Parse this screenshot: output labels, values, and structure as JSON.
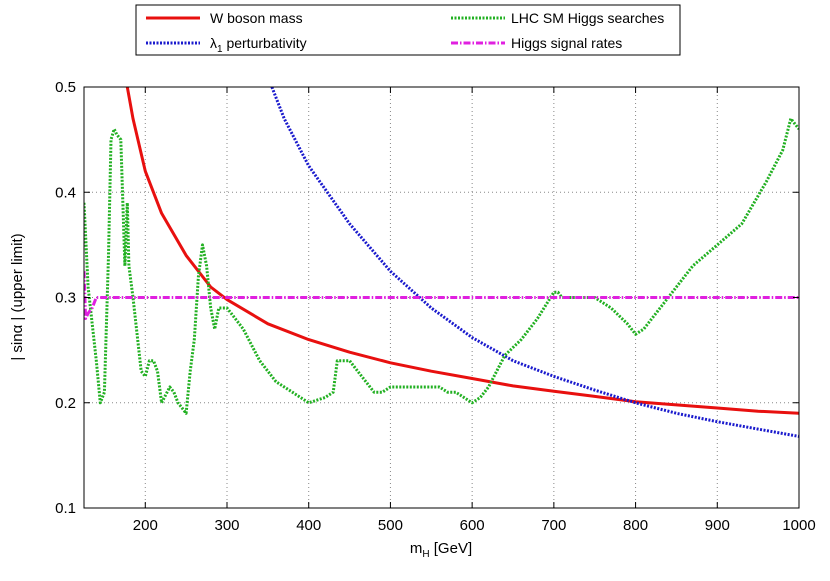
{
  "chart_data": {
    "type": "line",
    "xlabel": "m_H [GeV]",
    "xlabel_main": "m",
    "xlabel_sub": "H",
    "xlabel_rest": " [GeV]",
    "ylabel": "| sinα |  (upper limit)",
    "xlim": [
      125,
      1000
    ],
    "ylim": [
      0.1,
      0.5
    ],
    "x_ticks": [
      200,
      300,
      400,
      500,
      600,
      700,
      800,
      900,
      1000
    ],
    "x_tick_labels": [
      "200",
      "300",
      "400",
      "500",
      "600",
      "700",
      "800",
      "900",
      "1000"
    ],
    "y_ticks": [
      0.1,
      0.2,
      0.3,
      0.4,
      0.5
    ],
    "y_tick_labels": [
      "0.1",
      "0.2",
      "0.3",
      "0.4",
      "0.5"
    ],
    "grid": true,
    "legend_position": "top (above plot, two columns)",
    "series": [
      {
        "name": "W boson mass",
        "color": "#e8100f",
        "style": "solid",
        "x": [
          178,
          185,
          200,
          220,
          250,
          280,
          300,
          350,
          400,
          450,
          500,
          550,
          600,
          650,
          700,
          750,
          800,
          850,
          900,
          950,
          1000
        ],
        "y": [
          0.5,
          0.47,
          0.42,
          0.38,
          0.34,
          0.31,
          0.298,
          0.275,
          0.26,
          0.248,
          0.238,
          0.23,
          0.223,
          0.216,
          0.211,
          0.206,
          0.201,
          0.198,
          0.195,
          0.192,
          0.19
        ]
      },
      {
        "name": "λ₁ perturbativity",
        "legend_main": "λ",
        "legend_sub": "1",
        "legend_rest": " perturbativity",
        "color": "#1a1acd",
        "style": "dotted",
        "x": [
          355,
          370,
          400,
          450,
          500,
          550,
          600,
          650,
          700,
          750,
          800,
          850,
          900,
          950,
          1000
        ],
        "y": [
          0.5,
          0.47,
          0.425,
          0.37,
          0.325,
          0.29,
          0.262,
          0.24,
          0.225,
          0.212,
          0.2,
          0.19,
          0.182,
          0.175,
          0.168
        ]
      },
      {
        "name": "LHC SM Higgs searches",
        "color": "#22b022",
        "style": "dashed",
        "x": [
          125,
          130,
          140,
          145,
          150,
          155,
          158,
          162,
          165,
          170,
          175,
          178,
          180,
          185,
          190,
          195,
          200,
          205,
          210,
          215,
          220,
          230,
          235,
          240,
          245,
          250,
          255,
          260,
          265,
          270,
          275,
          280,
          285,
          290,
          300,
          310,
          320,
          340,
          360,
          380,
          400,
          420,
          430,
          435,
          440,
          450,
          460,
          470,
          480,
          490,
          500,
          510,
          520,
          530,
          540,
          550,
          560,
          570,
          580,
          590,
          600,
          610,
          620,
          630,
          640,
          660,
          680,
          700,
          705,
          710,
          730,
          750,
          770,
          790,
          800,
          810,
          830,
          850,
          870,
          900,
          930,
          960,
          980,
          990,
          1000
        ],
        "y": [
          0.39,
          0.31,
          0.24,
          0.2,
          0.21,
          0.34,
          0.45,
          0.46,
          0.455,
          0.45,
          0.33,
          0.39,
          0.33,
          0.3,
          0.265,
          0.23,
          0.225,
          0.24,
          0.24,
          0.23,
          0.2,
          0.215,
          0.21,
          0.2,
          0.195,
          0.19,
          0.23,
          0.26,
          0.32,
          0.35,
          0.33,
          0.29,
          0.27,
          0.29,
          0.29,
          0.28,
          0.27,
          0.24,
          0.22,
          0.21,
          0.2,
          0.205,
          0.21,
          0.24,
          0.24,
          0.24,
          0.23,
          0.22,
          0.21,
          0.21,
          0.215,
          0.215,
          0.215,
          0.215,
          0.215,
          0.215,
          0.215,
          0.21,
          0.21,
          0.205,
          0.2,
          0.205,
          0.215,
          0.23,
          0.245,
          0.26,
          0.28,
          0.305,
          0.305,
          0.3,
          0.3,
          0.3,
          0.29,
          0.275,
          0.265,
          0.27,
          0.29,
          0.31,
          0.33,
          0.35,
          0.37,
          0.41,
          0.44,
          0.47,
          0.46
        ]
      },
      {
        "name": "Higgs signal rates",
        "color": "#e020e0",
        "style": "dashdot",
        "x": [
          125,
          127,
          130,
          135,
          140,
          145,
          150,
          1000
        ],
        "y": [
          0.325,
          0.28,
          0.285,
          0.29,
          0.3,
          0.3,
          0.3,
          0.3
        ]
      }
    ]
  }
}
